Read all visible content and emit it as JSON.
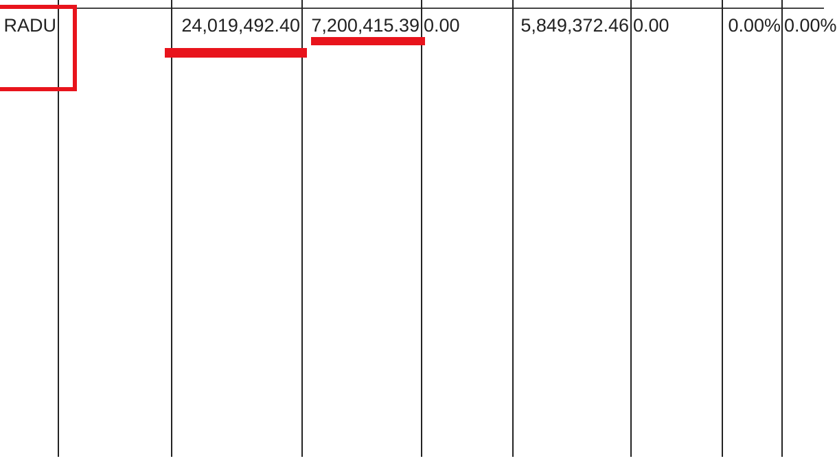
{
  "table": {
    "row": {
      "name": "RADU",
      "col1": "",
      "col2": "24,019,492.40",
      "col3": "7,200,415.39",
      "col4": "0.00",
      "col5": "5,849,372.46",
      "col6": "0.00",
      "col7": "0.00%",
      "col8": "0.00%"
    }
  },
  "annotations": {
    "color": "#e8141c"
  }
}
